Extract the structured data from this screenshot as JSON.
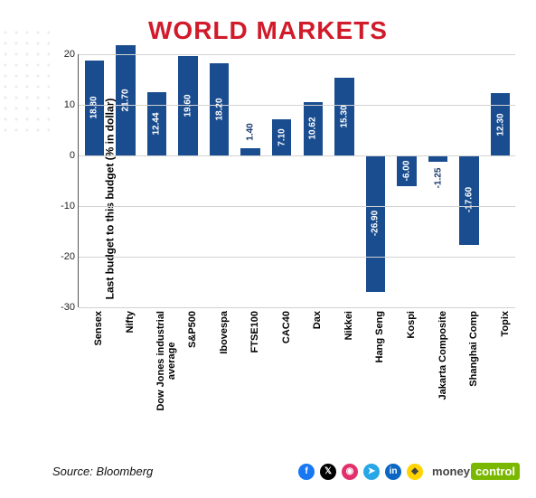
{
  "title": {
    "text": "WORLD MARKETS",
    "color": "#d11a2a",
    "fontsize": 28
  },
  "chart": {
    "type": "bar",
    "ylabel": "Last budget to this budget (% in dollar)",
    "ylim": [
      -30,
      20
    ],
    "ytick_step": 10,
    "yticks": [
      -30,
      -20,
      -10,
      0,
      10,
      20
    ],
    "bar_color": "#1a4d8f",
    "grid_color": "#d2d2d2",
    "axis_color": "#555555",
    "background_color": "#ffffff",
    "bar_width_ratio": 0.62,
    "label_fontsize": 10,
    "xlabel_fontsize": 11,
    "categories": [
      "Sensex",
      "Nifty",
      "Dow Jones industrial average",
      "S&P500",
      "Ibovespa",
      "FTSE100",
      "CAC40",
      "Dax",
      "Nikkei",
      "Hang Seng",
      "Kospi",
      "Jakarta Composite",
      "Shanghai Comp",
      "Topix"
    ],
    "values": [
      18.8,
      21.7,
      12.44,
      19.6,
      18.2,
      1.4,
      7.1,
      10.62,
      15.3,
      -26.9,
      -6.0,
      -1.25,
      -17.6,
      12.3
    ]
  },
  "footer": {
    "source": "Source: Bloomberg"
  },
  "social": {
    "icons": [
      {
        "name": "facebook",
        "bg": "#1877f2",
        "glyph": "f"
      },
      {
        "name": "x-twitter",
        "bg": "#000000",
        "glyph": "𝕏"
      },
      {
        "name": "instagram",
        "bg": "#e1306c",
        "glyph": "◉"
      },
      {
        "name": "telegram",
        "bg": "#27a7e7",
        "glyph": "➤"
      },
      {
        "name": "linkedin",
        "bg": "#0a66c2",
        "glyph": "in"
      },
      {
        "name": "koo",
        "bg": "#ffd400",
        "glyph": "◆"
      }
    ],
    "logo": {
      "part1": "money",
      "part2": "control",
      "accent": "#7ab800"
    }
  }
}
